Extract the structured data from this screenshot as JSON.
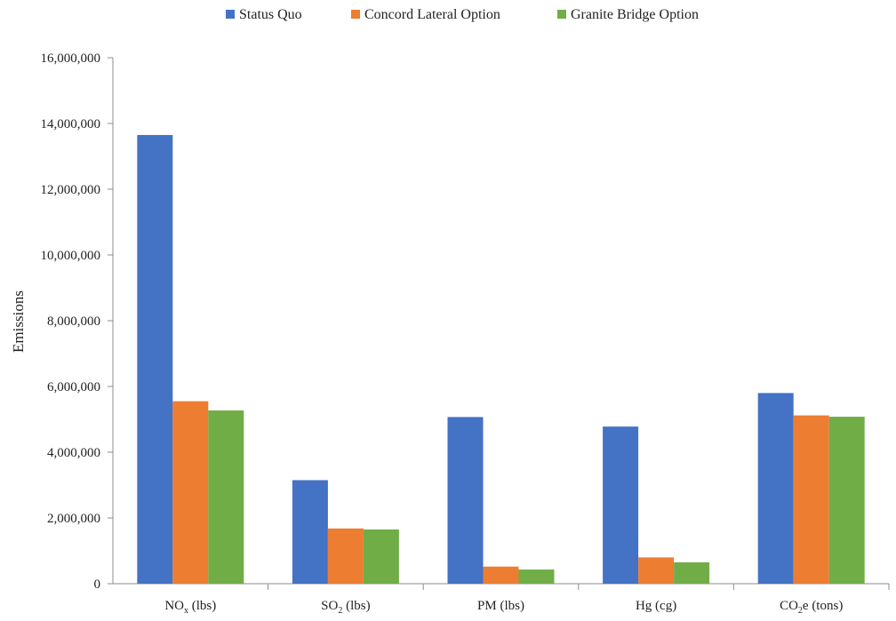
{
  "chart_data": {
    "type": "bar",
    "ylabel": "Emissions",
    "xlabel": "",
    "title": "",
    "ylim": [
      0,
      16000000
    ],
    "yticks": [
      0,
      2000000,
      4000000,
      6000000,
      8000000,
      10000000,
      12000000,
      14000000,
      16000000
    ],
    "ytick_labels": [
      "0",
      "2,000,000",
      "4,000,000",
      "6,000,000",
      "8,000,000",
      "10,000,000",
      "12,000,000",
      "14,000,000",
      "16,000,000"
    ],
    "categories": [
      {
        "base": "NO",
        "sub": "x",
        "tail": " (lbs)"
      },
      {
        "base": "SO",
        "sub": "2",
        "tail": " (lbs)"
      },
      {
        "base": "PM (lbs)",
        "sub": "",
        "tail": ""
      },
      {
        "base": "Hg (cg)",
        "sub": "",
        "tail": ""
      },
      {
        "base": "CO",
        "sub": "2",
        "tail": "e (tons)"
      }
    ],
    "series": [
      {
        "name": "Status Quo",
        "color": "#4472C4",
        "values": [
          13650000,
          3150000,
          5070000,
          4780000,
          5800000
        ]
      },
      {
        "name": "Concord Lateral Option",
        "color": "#ED7D31",
        "values": [
          5550000,
          1680000,
          520000,
          800000,
          5120000
        ]
      },
      {
        "name": "Granite Bridge Option",
        "color": "#70AD47",
        "values": [
          5270000,
          1650000,
          430000,
          650000,
          5080000
        ]
      }
    ],
    "legend_position": "top-center",
    "grid": false
  }
}
